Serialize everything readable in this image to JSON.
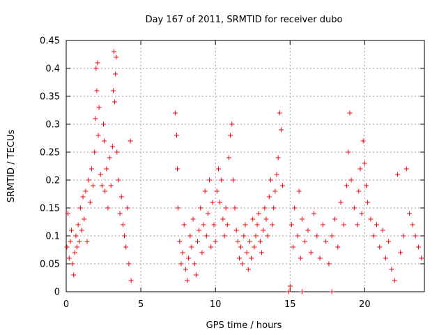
{
  "chart_data": {
    "type": "scatter",
    "title": "Day 167 of 2011, SRMTID for receiver dubo",
    "xlabel": "GPS time / hours",
    "ylabel": "SRMTID / TECUs",
    "xlim": [
      0,
      24
    ],
    "ylim": [
      0,
      0.45
    ],
    "xticks": [
      0,
      5,
      10,
      15,
      20
    ],
    "xtick_labels": [
      "0",
      "5",
      "10",
      "15",
      "20"
    ],
    "yticks": [
      0,
      0.05,
      0.1,
      0.15,
      0.2,
      0.25,
      0.3,
      0.35,
      0.4,
      0.45
    ],
    "ytick_labels": [
      "0",
      "0.05",
      "0.1",
      "0.15",
      "0.2",
      "0.25",
      "0.3",
      "0.35",
      "0.4",
      "0.45"
    ],
    "grid": true,
    "marker": "+",
    "marker_color": "#ff0000",
    "series": [
      {
        "name": "SRMTID",
        "x": [
          0.05,
          0.12,
          0.2,
          0.28,
          0.35,
          0.42,
          0.5,
          0.58,
          0.65,
          0.72,
          0.8,
          0.88,
          0.95,
          1.05,
          1.12,
          1.2,
          1.3,
          1.4,
          1.5,
          1.6,
          1.7,
          1.8,
          1.9,
          1.95,
          2.0,
          2.05,
          2.1,
          2.15,
          2.2,
          2.3,
          2.4,
          2.5,
          2.55,
          2.6,
          2.7,
          2.8,
          2.9,
          3.0,
          3.1,
          3.15,
          3.2,
          3.25,
          3.3,
          3.35,
          3.4,
          3.5,
          3.6,
          3.7,
          3.8,
          3.9,
          4.0,
          4.1,
          4.2,
          4.3,
          4.35,
          7.3,
          7.4,
          7.45,
          7.5,
          7.6,
          7.7,
          7.8,
          7.9,
          8.0,
          8.1,
          8.2,
          8.3,
          8.4,
          8.5,
          8.6,
          8.7,
          8.8,
          8.9,
          9.0,
          9.1,
          9.2,
          9.3,
          9.4,
          9.5,
          9.6,
          9.7,
          9.8,
          9.9,
          10.0,
          10.1,
          10.2,
          10.3,
          10.4,
          10.5,
          10.6,
          10.7,
          10.8,
          10.9,
          11.0,
          11.1,
          11.2,
          11.3,
          11.4,
          11.5,
          11.6,
          11.7,
          11.8,
          11.9,
          12.0,
          12.1,
          12.2,
          12.3,
          12.4,
          12.5,
          12.6,
          12.7,
          12.8,
          12.9,
          13.0,
          13.1,
          13.2,
          13.3,
          13.4,
          13.5,
          13.6,
          13.7,
          13.8,
          13.9,
          14.0,
          14.1,
          14.2,
          14.3,
          14.4,
          14.5,
          15.0,
          15.1,
          15.2,
          15.3,
          15.5,
          15.6,
          15.7,
          15.8,
          16.0,
          16.2,
          16.4,
          16.6,
          16.8,
          17.0,
          17.2,
          17.4,
          17.6,
          17.8,
          18.0,
          18.2,
          18.4,
          18.6,
          18.8,
          18.9,
          19.0,
          19.1,
          19.3,
          19.5,
          19.6,
          19.7,
          19.8,
          19.9,
          20.0,
          20.1,
          20.2,
          20.4,
          20.6,
          20.8,
          21.0,
          21.2,
          21.4,
          21.6,
          21.8,
          22.0,
          22.2,
          22.4,
          22.6,
          22.8,
          23.0,
          23.2,
          23.4,
          23.6,
          23.8,
          14.9,
          15.8,
          17.8
        ],
        "y": [
          0.08,
          0.14,
          0.06,
          0.09,
          0.11,
          0.05,
          0.03,
          0.07,
          0.1,
          0.08,
          0.12,
          0.09,
          0.15,
          0.11,
          0.17,
          0.13,
          0.18,
          0.09,
          0.2,
          0.16,
          0.22,
          0.19,
          0.25,
          0.31,
          0.4,
          0.36,
          0.41,
          0.28,
          0.33,
          0.21,
          0.19,
          0.3,
          0.27,
          0.18,
          0.22,
          0.15,
          0.24,
          0.19,
          0.26,
          0.36,
          0.43,
          0.34,
          0.39,
          0.42,
          0.25,
          0.2,
          0.14,
          0.17,
          0.12,
          0.1,
          0.08,
          0.15,
          0.05,
          0.27,
          0.02,
          0.32,
          0.28,
          0.22,
          0.15,
          0.09,
          0.05,
          0.07,
          0.12,
          0.04,
          0.02,
          0.06,
          0.1,
          0.08,
          0.13,
          0.05,
          0.03,
          0.09,
          0.11,
          0.15,
          0.07,
          0.12,
          0.18,
          0.1,
          0.14,
          0.2,
          0.08,
          0.16,
          0.12,
          0.09,
          0.18,
          0.22,
          0.16,
          0.2,
          0.13,
          0.1,
          0.15,
          0.12,
          0.24,
          0.28,
          0.3,
          0.2,
          0.15,
          0.11,
          0.09,
          0.06,
          0.08,
          0.05,
          0.1,
          0.12,
          0.07,
          0.04,
          0.09,
          0.06,
          0.13,
          0.08,
          0.1,
          0.12,
          0.14,
          0.09,
          0.07,
          0.11,
          0.15,
          0.13,
          0.1,
          0.17,
          0.2,
          0.12,
          0.15,
          0.18,
          0.21,
          0.24,
          0.32,
          0.29,
          0.19,
          0.01,
          0.12,
          0.08,
          0.15,
          0.1,
          0.18,
          0.06,
          0.13,
          0.09,
          0.11,
          0.07,
          0.14,
          0.1,
          0.06,
          0.12,
          0.09,
          0.05,
          0.1,
          0.13,
          0.08,
          0.16,
          0.12,
          0.19,
          0.25,
          0.32,
          0.2,
          0.15,
          0.12,
          0.18,
          0.22,
          0.14,
          0.27,
          0.23,
          0.19,
          0.16,
          0.13,
          0.1,
          0.12,
          0.08,
          0.11,
          0.06,
          0.09,
          0.04,
          0.02,
          0.21,
          0.07,
          0.1,
          0.22,
          0.14,
          0.12,
          0.1,
          0.08,
          0.06,
          0.0,
          0.0,
          0.0
        ]
      }
    ]
  }
}
